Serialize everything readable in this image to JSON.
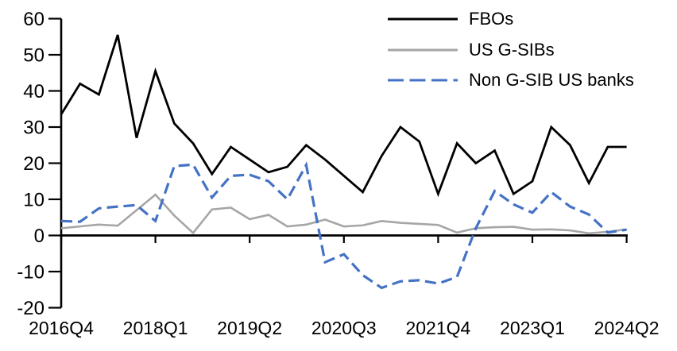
{
  "chart_data": {
    "type": "line",
    "title": "",
    "xlabel": "",
    "ylabel": "",
    "ylim": [
      -20,
      60
    ],
    "ytick_step": 10,
    "y_tick_labels": [
      "-20",
      "-10",
      "0",
      "10",
      "20",
      "30",
      "40",
      "50",
      "60"
    ],
    "x_label_every": 5,
    "x_labels_shown": [
      "2016Q4",
      "2018Q1",
      "2019Q2",
      "2020Q3",
      "2021Q4",
      "2023Q1",
      "2024Q2"
    ],
    "grid": false,
    "legend_position": "top-right",
    "categories": [
      "2016Q4",
      "2017Q1",
      "2017Q2",
      "2017Q3",
      "2017Q4",
      "2018Q1",
      "2018Q2",
      "2018Q3",
      "2018Q4",
      "2019Q1",
      "2019Q2",
      "2019Q3",
      "2019Q4",
      "2020Q1",
      "2020Q2",
      "2020Q3",
      "2020Q4",
      "2021Q1",
      "2021Q2",
      "2021Q3",
      "2021Q4",
      "2022Q1",
      "2022Q2",
      "2022Q3",
      "2022Q4",
      "2023Q1",
      "2023Q2",
      "2023Q3",
      "2023Q4",
      "2024Q1",
      "2024Q2"
    ],
    "series": [
      {
        "id": "fbos",
        "name": "FBOs",
        "color": "#000000",
        "style": "solid",
        "values": [
          33.5,
          42,
          39,
          55.5,
          27,
          45.5,
          31,
          25.5,
          17,
          24.5,
          21,
          17.5,
          19,
          25,
          21,
          16.5,
          12,
          22,
          30,
          26,
          11.5,
          25.5,
          20,
          23.5,
          11.5,
          15,
          30,
          25,
          14.5,
          24.5,
          24.5
        ]
      },
      {
        "id": "us-gsibs",
        "name": "US G-SIBs",
        "color": "#a6a6a6",
        "style": "solid",
        "values": [
          2,
          2.5,
          3,
          2.7,
          7,
          11.3,
          5.5,
          0.7,
          7.2,
          7.7,
          4.5,
          5.7,
          2.5,
          3,
          4.4,
          2.5,
          2.8,
          4,
          3.5,
          3.2,
          2.9,
          0.8,
          2,
          2.3,
          2.4,
          1.6,
          1.7,
          1.4,
          0.6,
          1,
          1.7
        ]
      },
      {
        "id": "non-gsib-us-banks",
        "name": "Non G-SIB US banks",
        "color": "#4472c4",
        "style": "dashed",
        "values": [
          4,
          3.8,
          7.5,
          8,
          8.4,
          4,
          19.2,
          19.6,
          10.5,
          16.5,
          16.8,
          15,
          10,
          19.5,
          -7.4,
          -5.2,
          -11,
          -14.5,
          -12.7,
          -12.4,
          -13.3,
          -11.5,
          2,
          12.3,
          8.6,
          6.3,
          12,
          8,
          5.8,
          0.8,
          1.6
        ]
      }
    ],
    "axis_color": "#000000"
  }
}
